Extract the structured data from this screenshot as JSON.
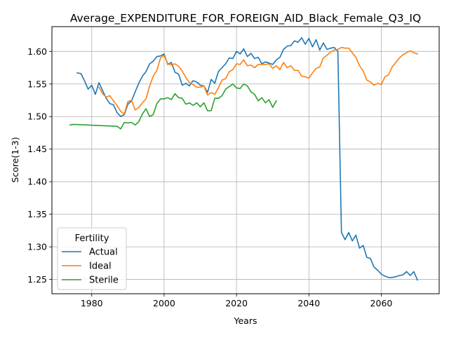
{
  "chart_data": {
    "type": "line",
    "title": "Average_EXPENDITURE_FOR_FOREIGN_AID_Black_Female_Q3_IQ",
    "xlabel": "Years",
    "ylabel": "Score(1-3)",
    "xlim": [
      1969,
      2076
    ],
    "ylim": [
      1.228,
      1.638
    ],
    "xticks": [
      1980,
      2000,
      2020,
      2040,
      2060
    ],
    "yticks": [
      1.25,
      1.3,
      1.35,
      1.4,
      1.45,
      1.5,
      1.55,
      1.6
    ],
    "xtick_labels": [
      "1980",
      "2000",
      "2020",
      "2040",
      "2060"
    ],
    "ytick_labels": [
      "1.25",
      "1.30",
      "1.35",
      "1.40",
      "1.45",
      "1.50",
      "1.55",
      "1.60"
    ],
    "grid": true,
    "legend": {
      "title": "Fertility",
      "position": "lower-left"
    },
    "series": [
      {
        "name": "Actual",
        "color": "#1f77b4",
        "x": [
          1976,
          1977,
          1978,
          1979,
          1980,
          1981,
          1982,
          1983,
          1984,
          1985,
          1986,
          1987,
          1988,
          1989,
          1990,
          1991,
          1992,
          1993,
          1994,
          1995,
          1996,
          1997,
          1998,
          1999,
          2000,
          2001,
          2002,
          2003,
          2004,
          2005,
          2006,
          2007,
          2008,
          2009,
          2010,
          2011,
          2012,
          2013,
          2014,
          2015,
          2016,
          2017,
          2018,
          2019,
          2020,
          2021,
          2022,
          2023,
          2024,
          2025,
          2026,
          2027,
          2028,
          2029,
          2030,
          2031,
          2032,
          2033,
          2034,
          2035,
          2036,
          2037,
          2038,
          2039,
          2040,
          2041,
          2042,
          2043,
          2044,
          2045,
          2046,
          2047,
          2048,
          2049,
          2050,
          2051,
          2052,
          2053,
          2054,
          2055,
          2056,
          2057,
          2058,
          2059,
          2060,
          2061,
          2062,
          2063,
          2064,
          2065,
          2066,
          2067,
          2068,
          2069,
          2070
        ],
        "values": [
          1.567,
          1.566,
          1.555,
          1.542,
          1.548,
          1.534,
          1.552,
          1.54,
          1.528,
          1.52,
          1.518,
          1.506,
          1.5,
          1.503,
          1.519,
          1.524,
          1.538,
          1.551,
          1.562,
          1.569,
          1.581,
          1.585,
          1.592,
          1.593,
          1.596,
          1.58,
          1.583,
          1.568,
          1.565,
          1.548,
          1.551,
          1.547,
          1.555,
          1.553,
          1.548,
          1.547,
          1.537,
          1.557,
          1.551,
          1.569,
          1.575,
          1.581,
          1.59,
          1.589,
          1.6,
          1.596,
          1.604,
          1.592,
          1.597,
          1.589,
          1.591,
          1.581,
          1.584,
          1.582,
          1.58,
          1.587,
          1.591,
          1.603,
          1.608,
          1.609,
          1.616,
          1.614,
          1.621,
          1.611,
          1.62,
          1.607,
          1.618,
          1.602,
          1.613,
          1.603,
          1.605,
          1.606,
          1.6,
          1.322,
          1.311,
          1.322,
          1.309,
          1.318,
          1.298,
          1.302,
          1.284,
          1.282,
          1.269,
          1.264,
          1.258,
          1.255,
          1.253,
          1.253,
          1.254,
          1.256,
          1.257,
          1.262,
          1.256,
          1.262,
          1.249
        ]
      },
      {
        "name": "Ideal",
        "color": "#ff7f0e",
        "x": [
          1982,
          1983,
          1984,
          1985,
          1986,
          1987,
          1988,
          1989,
          1990,
          1991,
          1992,
          1993,
          1994,
          1995,
          1996,
          1997,
          1998,
          1999,
          2000,
          2001,
          2002,
          2003,
          2004,
          2005,
          2006,
          2007,
          2008,
          2009,
          2010,
          2011,
          2012,
          2013,
          2014,
          2015,
          2016,
          2017,
          2018,
          2019,
          2020,
          2021,
          2022,
          2023,
          2024,
          2025,
          2026,
          2027,
          2028,
          2029,
          2030,
          2031,
          2032,
          2033,
          2034,
          2035,
          2036,
          2037,
          2038,
          2039,
          2040,
          2041,
          2042,
          2043,
          2044,
          2045,
          2046,
          2047,
          2048,
          2049,
          2050,
          2051,
          2052,
          2053,
          2054,
          2055,
          2056,
          2057,
          2058,
          2059,
          2060,
          2061,
          2062,
          2063,
          2064,
          2065,
          2066,
          2067,
          2068,
          2069,
          2070
        ],
        "values": [
          1.545,
          1.535,
          1.53,
          1.532,
          1.524,
          1.517,
          1.508,
          1.504,
          1.523,
          1.525,
          1.51,
          1.514,
          1.521,
          1.527,
          1.547,
          1.562,
          1.571,
          1.59,
          1.594,
          1.581,
          1.579,
          1.581,
          1.577,
          1.57,
          1.56,
          1.552,
          1.549,
          1.545,
          1.545,
          1.547,
          1.533,
          1.537,
          1.534,
          1.544,
          1.556,
          1.558,
          1.569,
          1.572,
          1.581,
          1.58,
          1.587,
          1.578,
          1.579,
          1.575,
          1.58,
          1.58,
          1.58,
          1.581,
          1.574,
          1.578,
          1.572,
          1.583,
          1.575,
          1.578,
          1.571,
          1.571,
          1.562,
          1.561,
          1.559,
          1.567,
          1.574,
          1.576,
          1.59,
          1.594,
          1.599,
          1.602,
          1.603,
          1.606,
          1.605,
          1.605,
          1.598,
          1.591,
          1.578,
          1.57,
          1.556,
          1.553,
          1.548,
          1.551,
          1.549,
          1.561,
          1.564,
          1.576,
          1.583,
          1.59,
          1.595,
          1.598,
          1.601,
          1.598,
          1.596
        ]
      },
      {
        "name": "Sterile",
        "color": "#2ca02c",
        "x": [
          1974,
          1975,
          1987,
          1988,
          1989,
          1990,
          1991,
          1992,
          1993,
          1994,
          1995,
          1996,
          1997,
          1998,
          1999,
          2000,
          2001,
          2002,
          2003,
          2004,
          2005,
          2006,
          2007,
          2008,
          2009,
          2010,
          2011,
          2012,
          2013,
          2014,
          2015,
          2016,
          2017,
          2018,
          2019,
          2020,
          2021,
          2022,
          2023,
          2024,
          2025,
          2026,
          2027,
          2028,
          2029,
          2030,
          2031
        ],
        "values": [
          1.487,
          1.488,
          1.485,
          1.481,
          1.491,
          1.49,
          1.491,
          1.487,
          1.492,
          1.504,
          1.512,
          1.5,
          1.503,
          1.52,
          1.527,
          1.527,
          1.529,
          1.526,
          1.535,
          1.529,
          1.528,
          1.519,
          1.521,
          1.517,
          1.521,
          1.515,
          1.521,
          1.509,
          1.509,
          1.528,
          1.528,
          1.532,
          1.542,
          1.546,
          1.55,
          1.544,
          1.543,
          1.55,
          1.547,
          1.538,
          1.534,
          1.524,
          1.529,
          1.521,
          1.526,
          1.514,
          1.524
        ]
      }
    ]
  }
}
